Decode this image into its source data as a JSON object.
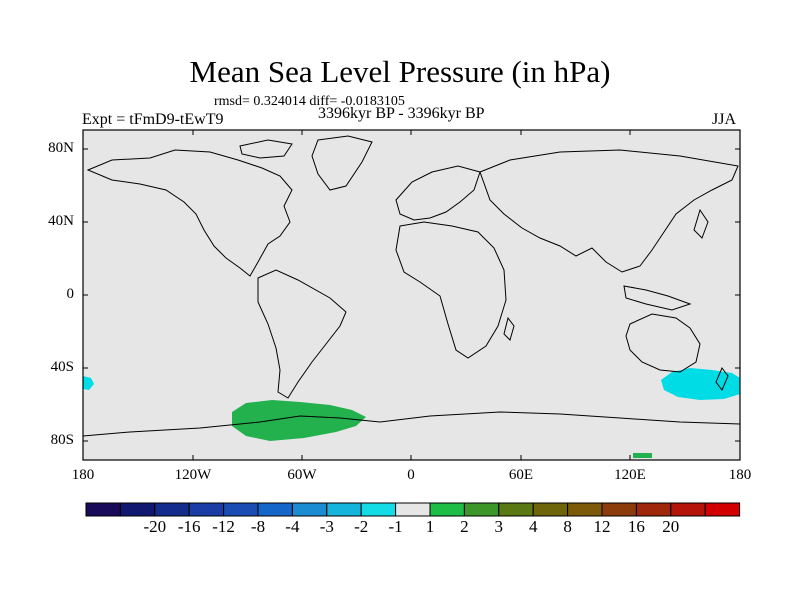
{
  "title": "Mean Sea Level Pressure (in hPa)",
  "stats": "rmsd= 0.324014 diff= -0.0183105",
  "expt": "Expt = tFmD9-tEwT9",
  "period": "3396kyr BP - 3396kyr BP",
  "season": "JJA",
  "y_ticks": [
    "80N",
    "40N",
    "0",
    "40S",
    "80S"
  ],
  "x_ticks": [
    "180",
    "120W",
    "60W",
    "0",
    "60E",
    "120E",
    "180"
  ],
  "colorbar": {
    "colors": [
      "#1a0a5a",
      "#101870",
      "#142c8c",
      "#1a3ca4",
      "#1a4cb4",
      "#1466c8",
      "#1a8cd2",
      "#14b4dc",
      "#14dce6",
      "#e6e6e6",
      "#1ebe46",
      "#3c9628",
      "#5a7814",
      "#6e640a",
      "#7c5a0a",
      "#8c3c0a",
      "#a0280a",
      "#b4140a",
      "#d20000"
    ],
    "labels": [
      "-20",
      "-16",
      "-12",
      "-8",
      "-4",
      "-3",
      "-2",
      "-1",
      "1",
      "2",
      "3",
      "4",
      "8",
      "12",
      "16",
      "20"
    ]
  },
  "colors": {
    "ocean": "#e6e6e6",
    "positive_anomaly": "#23b14d",
    "negative_anomaly": "#00dce6"
  }
}
